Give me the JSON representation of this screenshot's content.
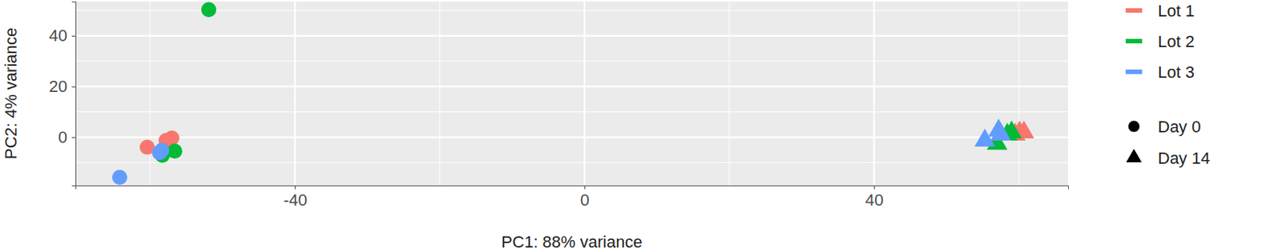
{
  "chart_data": {
    "type": "scatter",
    "x_label": "PC1: 88% variance",
    "y_label": "PC2: 4% variance",
    "xlim": [
      -70.3,
      66.8
    ],
    "ylim": [
      -19,
      53.5
    ],
    "xticks": [
      -40,
      0,
      40
    ],
    "yticks": [
      0,
      20,
      40
    ],
    "grid": true,
    "legend": "right",
    "series": [
      {
        "name": "Lot 1",
        "color": "#F8766D",
        "x": [
          -60.4,
          -57.8,
          -57.0,
          59.5,
          60.1,
          60.7
        ],
        "values": [
          -3.9,
          -1.3,
          -0.3,
          1.0,
          1.9,
          1.9
        ],
        "day": [
          "Day 0",
          "Day 0",
          "Day 0",
          "Day 14",
          "Day 14",
          "Day 14"
        ]
      },
      {
        "name": "Lot 2",
        "color": "#00BA38",
        "x": [
          -51.9,
          -56.6,
          -58.3,
          57.0,
          58.4,
          59.0
        ],
        "values": [
          50.3,
          -5.5,
          -7.1,
          -2.6,
          1.0,
          1.9
        ],
        "day": [
          "Day 0",
          "Day 0",
          "Day 0",
          "Day 14",
          "Day 14",
          "Day 14"
        ]
      },
      {
        "name": "Lot 3",
        "color": "#619CFF",
        "x": [
          -64.2,
          -58.7,
          -58.4,
          55.3,
          57.2,
          57.5
        ],
        "values": [
          -15.8,
          -6.1,
          -5.2,
          -1.3,
          2.6,
          1.0
        ],
        "day": [
          "Day 0",
          "Day 0",
          "Day 0",
          "Day 14",
          "Day 14",
          "Day 14"
        ]
      }
    ],
    "shapes": [
      {
        "name": "Day 0",
        "marker": "circle"
      },
      {
        "name": "Day 14",
        "marker": "triangle"
      }
    ]
  }
}
